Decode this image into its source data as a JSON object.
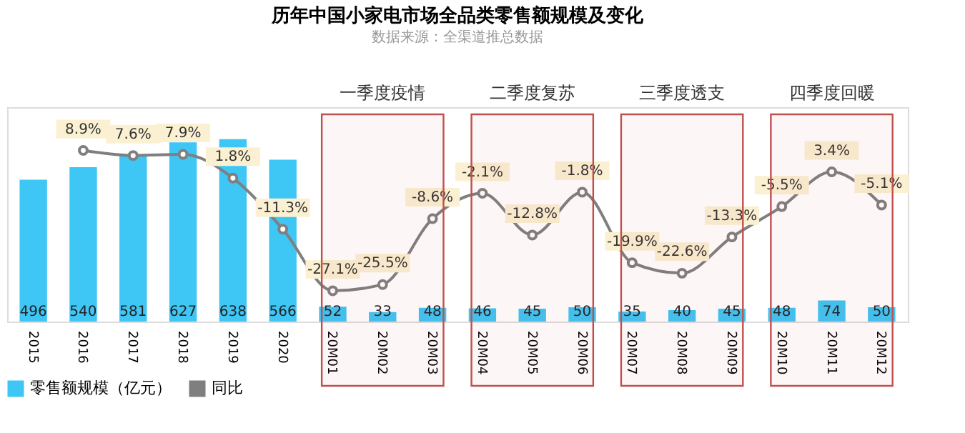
{
  "chart_data": {
    "type": "bar",
    "title": "历年中国小家电市场全品类零售额规模及变化",
    "categories": [
      "2015",
      "2016",
      "2017",
      "2018",
      "2019",
      "2020",
      "20M01",
      "20M02",
      "20M03",
      "20M04",
      "20M05",
      "20M06",
      "20M07",
      "20M08",
      "20M09",
      "20M10",
      "20M11",
      "20M12"
    ],
    "series": [
      {
        "name": "零售额规模（亿元）",
        "color": "#3ec6f5",
        "values": [
          496,
          540,
          581,
          627,
          638,
          566,
          52,
          33,
          48,
          46,
          45,
          50,
          35,
          40,
          45,
          48,
          74,
          50
        ]
      },
      {
        "name": "同比",
        "type": "line",
        "axis": "y2",
        "color": "#7f7f7f",
        "marker": "circle",
        "line_style": "solid",
        "values": [
          null,
          8.9,
          7.6,
          7.9,
          1.8,
          -11.3,
          -27.1,
          -25.5,
          -8.6,
          -2.1,
          -12.8,
          -1.8,
          -19.9,
          -22.6,
          -13.3,
          -5.5,
          3.4,
          -5.1
        ],
        "value_labels": [
          null,
          "8.9%",
          "7.6%",
          "7.9%",
          "1.8%",
          "-11.3%",
          "-27.1%",
          "-25.5%",
          "-8.6%",
          "-2.1%",
          "-12.8%",
          "-1.8%",
          "-19.9%",
          "-22.6%",
          "-13.3%",
          "-5.5%",
          "3.4%",
          "-5.1%"
        ]
      }
    ],
    "data_labels": true,
    "ylim": [
      0,
      750
    ],
    "y2lim": [
      -35,
      20
    ],
    "tick_labels": "x",
    "grid": false,
    "legend": "bottom",
    "bands": [
      {
        "axis": "x",
        "from": "20M01",
        "to": "20M03",
        "label": "一季度疫情",
        "color": "#c0504d"
      },
      {
        "axis": "x",
        "from": "20M04",
        "to": "20M06",
        "label": "二季度复苏",
        "color": "#c0504d"
      },
      {
        "axis": "x",
        "from": "20M07",
        "to": "20M09",
        "label": "三季度透支",
        "color": "#c0504d"
      },
      {
        "axis": "x",
        "from": "20M10",
        "to": "20M12",
        "label": "四季度回暖",
        "color": "#c0504d"
      }
    ],
    "annotations": [
      "数据来源：全渠道推总数据"
    ]
  }
}
